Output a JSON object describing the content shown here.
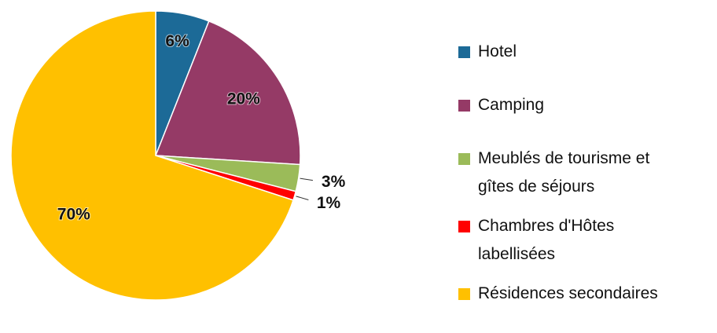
{
  "chart_data": {
    "type": "pie",
    "categories": [
      "Hotel",
      "Camping",
      "Meublés de tourisme et gîtes de séjours",
      "Chambres d'Hôtes labellisées",
      "Résidences secondaires"
    ],
    "values": [
      6,
      20,
      3,
      1,
      70
    ],
    "value_labels": [
      "6%",
      "20%",
      "3%",
      "1%",
      "70%"
    ],
    "colors": [
      "#1c6a97",
      "#953a66",
      "#9bbb59",
      "#ff0000",
      "#ffc000"
    ],
    "legend": "right"
  }
}
